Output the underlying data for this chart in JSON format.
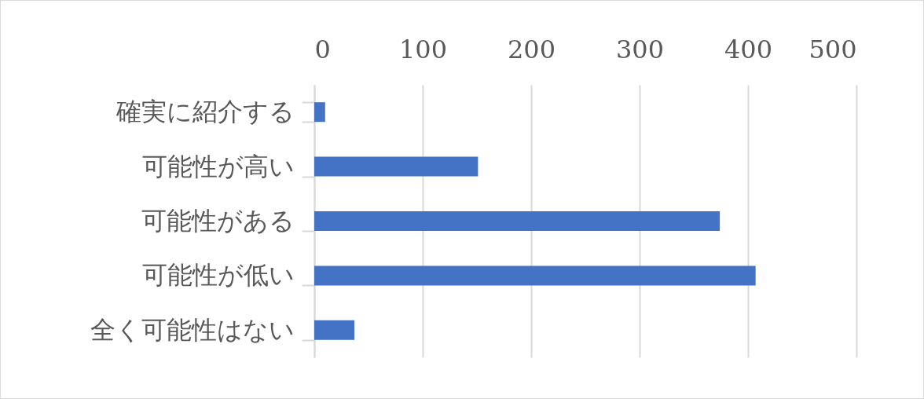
{
  "chart_data": {
    "type": "bar",
    "orientation": "horizontal",
    "categories": [
      "確実に紹介する",
      "可能性が高い",
      "可能性がある",
      "可能性が低い",
      "全く可能性はない"
    ],
    "values": [
      10,
      151,
      374,
      407,
      37
    ],
    "color": "#4472c4",
    "xlim": [
      0,
      500
    ],
    "xticks": [
      0,
      100,
      200,
      300,
      400,
      500
    ],
    "grid": "x"
  }
}
